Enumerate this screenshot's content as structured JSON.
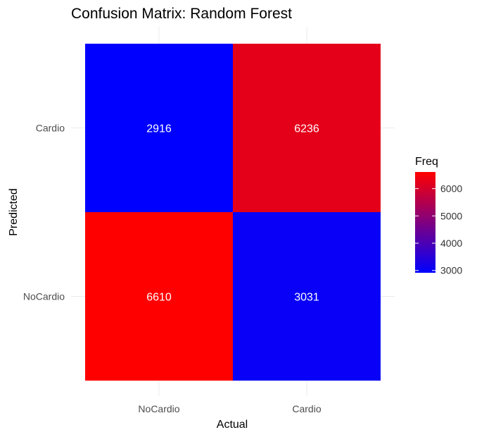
{
  "chart_data": {
    "type": "heatmap",
    "title": "Confusion Matrix: Random Forest",
    "xlabel": "Actual",
    "ylabel": "Predicted",
    "x_categories": [
      "NoCardio",
      "Cardio"
    ],
    "y_categories": [
      "NoCardio",
      "Cardio"
    ],
    "cells": [
      {
        "actual": "NoCardio",
        "predicted": "Cardio",
        "value": 2916
      },
      {
        "actual": "Cardio",
        "predicted": "Cardio",
        "value": 6236
      },
      {
        "actual": "NoCardio",
        "predicted": "NoCardio",
        "value": 6610
      },
      {
        "actual": "Cardio",
        "predicted": "NoCardio",
        "value": 3031
      }
    ],
    "legend": {
      "title": "Freq",
      "ticks": [
        3000,
        4000,
        5000,
        6000
      ],
      "range": [
        2916,
        6610
      ],
      "low_color": "#0000ff",
      "high_color": "#ff0000"
    },
    "grid": true
  }
}
